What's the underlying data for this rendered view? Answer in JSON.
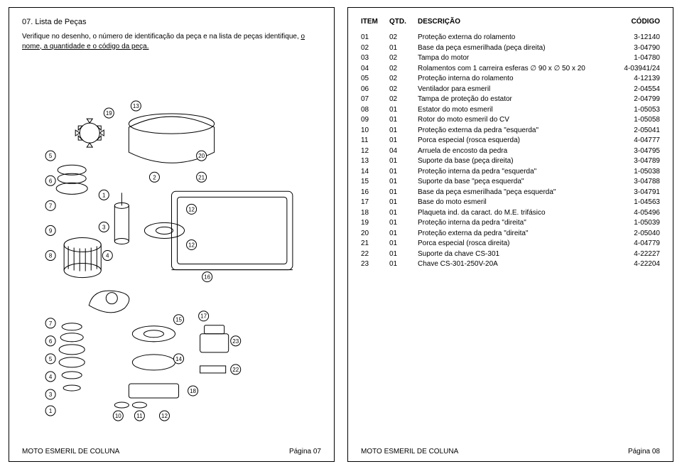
{
  "left": {
    "title": "07. Lista de Peças",
    "instruction_pre": "Verifique no desenho, o número de identificação da peça e na lista de peças identifique, ",
    "instruction_fields": "o nome,  a quantidade e o código da peça.",
    "footer_product": "MOTO ESMERIL DE COLUNA",
    "footer_page": "Página 07"
  },
  "right": {
    "header": {
      "item": "ITEM",
      "qtd": "QTD.",
      "desc": "DESCRIÇÃO",
      "code": "CÓDIGO"
    },
    "rows": [
      {
        "i": "01",
        "q": "02",
        "d": "Proteção externa do rolamento",
        "c": "3-12140"
      },
      {
        "i": "02",
        "q": "01",
        "d": "Base da peça esmerilhada (peça direita)",
        "c": "3-04790"
      },
      {
        "i": "03",
        "q": "02",
        "d": "Tampa do motor",
        "c": "1-04780"
      },
      {
        "i": "04",
        "q": "02",
        "d": "Rolamentos com 1 carreira esferas ∅ 90 x ∅ 50 x 20",
        "c": "4-03941/24"
      },
      {
        "i": "05",
        "q": "02",
        "d": "Proteção interna do rolamento",
        "c": "4-12139"
      },
      {
        "i": "06",
        "q": "02",
        "d": "Ventilador para esmeril",
        "c": "2-04554"
      },
      {
        "i": "07",
        "q": "02",
        "d": "Tampa de proteção do estator",
        "c": "2-04799"
      },
      {
        "i": "08",
        "q": "01",
        "d": "Estator do moto esmeril",
        "c": "1-05053"
      },
      {
        "i": "09",
        "q": "01",
        "d": "Rotor do moto esmeril do CV",
        "c": "1-05058"
      },
      {
        "i": "10",
        "q": "01",
        "d": "Proteção externa da pedra \"esquerda\"",
        "c": "2-05041"
      },
      {
        "i": "11",
        "q": "01",
        "d": "Porca especial (rosca esquerda)",
        "c": "4-04777"
      },
      {
        "i": "12",
        "q": "04",
        "d": "Arruela de encosto da pedra",
        "c": "3-04795"
      },
      {
        "i": "13",
        "q": "01",
        "d": "Suporte da base (peça direita)",
        "c": "3-04789"
      },
      {
        "i": "14",
        "q": "01",
        "d": "Proteção interna da pedra \"esquerda\"",
        "c": "1-05038"
      },
      {
        "i": "15",
        "q": "01",
        "d": "Suporte da base \"peça esquerda\"",
        "c": "3-04788"
      },
      {
        "i": "16",
        "q": "01",
        "d": "Base da peça esmerilhada \"peça esquerda\"",
        "c": "3-04791"
      },
      {
        "i": "17",
        "q": "01",
        "d": "Base do moto esmeril",
        "c": "1-04563"
      },
      {
        "i": "18",
        "q": "01",
        "d": "Plaqueta ind. da caract. do M.E. trifásico",
        "c": "4-05496"
      },
      {
        "i": "19",
        "q": "01",
        "d": "Proteção interna da pedra \"direita\"",
        "c": "1-05039"
      },
      {
        "i": "20",
        "q": "01",
        "d": "Proteção externa da pedra \"direita\"",
        "c": "2-05040"
      },
      {
        "i": "21",
        "q": "01",
        "d": "Porca especial (rosca direita)",
        "c": "4-04779"
      },
      {
        "i": "22",
        "q": "01",
        "d": "Suporte da chave CS-301",
        "c": "4-22227"
      },
      {
        "i": "23",
        "q": "01",
        "d": "Chave CS-301-250V-20A",
        "c": "4-22204"
      }
    ],
    "footer_product": "MOTO ESMERIL DE COLUNA",
    "footer_page": "Página 08"
  },
  "diagram": {
    "labels": [
      "1",
      "2",
      "3",
      "4",
      "5",
      "6",
      "7",
      "8",
      "9",
      "10",
      "11",
      "12",
      "13",
      "14",
      "15",
      "16",
      "17",
      "18",
      "19",
      "20",
      "21",
      "22",
      "23"
    ],
    "stroke": "#000000",
    "fill": "#ffffff"
  }
}
